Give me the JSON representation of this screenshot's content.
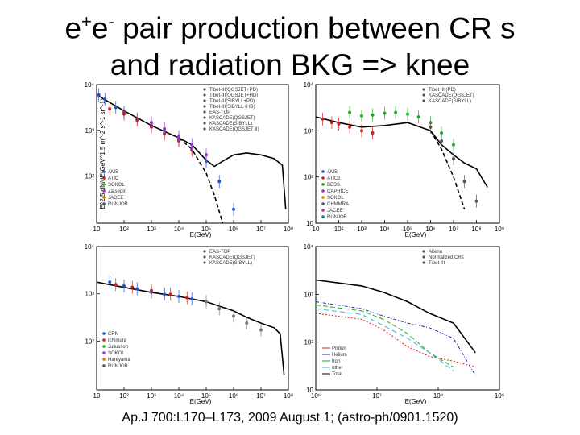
{
  "slide": {
    "title_line1_pre": "e",
    "title_sup1": "+",
    "title_mid": "e",
    "title_sup2": "-",
    "title_line1_post": " pair production between CR s",
    "title_line2": "and radiation BKG => knee",
    "citation": "Ap.J 700:L170–L173, 2009 August 1; (astro-ph/0901.1520)"
  },
  "chart_data": [
    {
      "type": "scatter",
      "xlabel": "E(GeV)",
      "ylabel": "E^2.5 dN/dE(GeV^1.5 m^-2 s^-1 sr^-1)",
      "x_ticks": [
        "10",
        "10²",
        "10³",
        "10⁴",
        "10⁵",
        "10⁶",
        "10⁷",
        "10⁸"
      ],
      "y_ticks": [
        "10⁴",
        "10³",
        "10²"
      ],
      "legend": [
        "AMS",
        "ATIC",
        "SOKOL",
        "Zatsepin",
        "JACEE",
        "RUNJOB"
      ],
      "legend_upper": [
        "Tibet-III(QGSJET+PD)",
        "Tibet-III(QGSJET+HD)",
        "Tibet-III(SIBYLL+PD)",
        "Tibet-III(SIBYLL+HD)",
        "EAS-TOP",
        "KASCADE(QGSJET)",
        "KASCADE(SIBYLL)",
        "KASCADE(QGSJET II)"
      ],
      "series": [
        {
          "values": [
            [
              12,
              6000
            ],
            [
              20,
              4800
            ],
            [
              50,
              3200
            ],
            [
              100,
              2500
            ],
            [
              300,
              1800
            ],
            [
              1000,
              1300
            ],
            [
              3000,
              900
            ],
            [
              10000,
              650
            ],
            [
              30000,
              420
            ],
            [
              100000,
              220
            ],
            [
              300000,
              80
            ],
            [
              1000000,
              20
            ]
          ],
          "color": "#2255cc"
        },
        {
          "values": [
            [
              30,
              3000
            ],
            [
              100,
              2300
            ],
            [
              300,
              1700
            ],
            [
              1000,
              1200
            ],
            [
              3000,
              850
            ],
            [
              10000,
              600
            ],
            [
              30000,
              380
            ]
          ],
          "color": "#cc2222"
        },
        {
          "values": [
            [
              1000,
              1500
            ],
            [
              3000,
              1100
            ],
            [
              10000,
              750
            ],
            [
              30000,
              500
            ],
            [
              100000,
              300
            ]
          ],
          "color": "#9933cc"
        }
      ],
      "lines": [
        {
          "name": "total",
          "values": [
            [
              10,
              6000
            ],
            [
              100,
              2700
            ],
            [
              1000,
              1300
            ],
            [
              10000,
              700
            ],
            [
              30000,
              500
            ],
            [
              100000,
              230
            ],
            [
              200000,
              170
            ],
            [
              400000,
              220
            ],
            [
              1000000,
              300
            ],
            [
              3000000,
              330
            ],
            [
              10000000,
              300
            ],
            [
              30000000,
              250
            ],
            [
              60000000,
              180
            ],
            [
              80000000,
              20
            ]
          ],
          "style": "solid"
        },
        {
          "name": "dashed",
          "values": [
            [
              10000,
              700
            ],
            [
              30000,
              400
            ],
            [
              100000,
              120
            ],
            [
              200000,
              40
            ],
            [
              400000,
              10
            ]
          ],
          "style": "dashed"
        }
      ],
      "xlim": [
        10,
        100000000
      ],
      "ylim": [
        10,
        10000
      ]
    },
    {
      "type": "scatter",
      "xlabel": "E(GeV)",
      "x_ticks": [
        "10",
        "10²",
        "10³",
        "10⁴",
        "10⁵",
        "10⁶",
        "10⁷",
        "10⁸",
        "10⁹"
      ],
      "y_ticks": [
        "10⁴",
        "10³",
        "10²",
        "10"
      ],
      "legend_upper": [
        "Tibet_III(PD)",
        "KASCADE(QGSJET)",
        "KASCADE(SIBYLL)"
      ],
      "legend": [
        "AMS",
        "ATIC2",
        "BESS",
        "CAPRICE",
        "SOKOL",
        "CHMMRA",
        "JACEE",
        "RUNJOB"
      ],
      "series": [
        {
          "values": [
            [
              300,
              2500
            ],
            [
              1000,
              2100
            ],
            [
              3000,
              2200
            ],
            [
              10000,
              2400
            ],
            [
              30000,
              2500
            ],
            [
              100000,
              2300
            ],
            [
              300000,
              2000
            ],
            [
              1000000,
              1500
            ],
            [
              3000000,
              900
            ],
            [
              10000000,
              500
            ]
          ],
          "color": "#22aa22"
        },
        {
          "values": [
            [
              20,
              1800
            ],
            [
              50,
              1500
            ],
            [
              100,
              1400
            ],
            [
              300,
              1200
            ],
            [
              1000,
              1000
            ],
            [
              3000,
              900
            ]
          ],
          "color": "#cc2222"
        },
        {
          "values": [
            [
              1000000,
              1200
            ],
            [
              3000000,
              600
            ],
            [
              10000000,
              250
            ],
            [
              30000000,
              80
            ],
            [
              100000000,
              30
            ]
          ],
          "color": "#555555"
        }
      ],
      "lines": [
        {
          "name": "total",
          "values": [
            [
              10,
              2000
            ],
            [
              100,
              1500
            ],
            [
              1000,
              1200
            ],
            [
              10000,
              1300
            ],
            [
              100000,
              1500
            ],
            [
              1000000,
              1000
            ],
            [
              3000000,
              500
            ],
            [
              10000000,
              300
            ],
            [
              30000000,
              200
            ],
            [
              100000000,
              150
            ],
            [
              300000000,
              60
            ]
          ],
          "style": "solid"
        },
        {
          "name": "dashed",
          "values": [
            [
              1000000,
              1000
            ],
            [
              3000000,
              400
            ],
            [
              10000000,
              100
            ],
            [
              30000000,
              20
            ]
          ],
          "style": "dashed"
        }
      ],
      "xlim": [
        10,
        1000000000
      ],
      "ylim": [
        10,
        10000
      ]
    },
    {
      "type": "scatter",
      "xlabel": "E(GeV)",
      "x_ticks": [
        "10",
        "10²",
        "10³",
        "10⁴",
        "10⁵",
        "10⁶",
        "10⁷",
        "10⁸"
      ],
      "y_ticks": [
        "10⁴",
        "10³",
        "10²"
      ],
      "legend_upper": [
        "EAS-TOP",
        "KASCADE(QGSJET)",
        "KASCADE(SIBYLL)"
      ],
      "legend": [
        "CRN",
        "Ichimura",
        "Juliusson",
        "SOKOL",
        "Hareyama",
        "RUNJOB"
      ],
      "series": [
        {
          "values": [
            [
              30,
              1800
            ],
            [
              100,
              1500
            ],
            [
              300,
              1300
            ],
            [
              1000,
              1100
            ],
            [
              3000,
              1000
            ],
            [
              10000,
              900
            ],
            [
              30000,
              800
            ]
          ],
          "color": "#2255cc"
        },
        {
          "values": [
            [
              50,
              1600
            ],
            [
              200,
              1400
            ],
            [
              1000,
              1200
            ],
            [
              5000,
              1000
            ],
            [
              20000,
              850
            ]
          ],
          "color": "#cc2222"
        },
        {
          "values": [
            [
              100000,
              700
            ],
            [
              300000,
              500
            ],
            [
              1000000,
              350
            ],
            [
              3000000,
              250
            ],
            [
              10000000,
              180
            ]
          ],
          "color": "#777777"
        }
      ],
      "lines": [
        {
          "name": "total",
          "values": [
            [
              10,
              1800
            ],
            [
              100,
              1400
            ],
            [
              1000,
              1100
            ],
            [
              10000,
              900
            ],
            [
              100000,
              700
            ],
            [
              1000000,
              450
            ],
            [
              3000000,
              330
            ],
            [
              10000000,
              250
            ],
            [
              30000000,
              200
            ],
            [
              50000000,
              150
            ],
            [
              70000000,
              20
            ]
          ],
          "style": "solid"
        }
      ],
      "xlim": [
        10,
        100000000
      ],
      "ylim": [
        10,
        10000
      ]
    },
    {
      "type": "line",
      "xlabel": "E(GeV)",
      "x_ticks": [
        "10⁶",
        "10⁷",
        "10⁸",
        "10⁹"
      ],
      "y_ticks": [
        "10⁴",
        "10³",
        "10²",
        "10"
      ],
      "legend_upper": [
        "Akeno",
        "Normalized CRs",
        "Tibet-III"
      ],
      "legend": [
        "Proton",
        "Helium",
        "Iron",
        "other",
        "Total"
      ],
      "series": [
        {
          "name": "Proton",
          "values": [
            [
              100000,
              400
            ],
            [
              1000000,
              300
            ],
            [
              3000000,
              180
            ],
            [
              10000000,
              80
            ],
            [
              30000000,
              50
            ],
            [
              100000000,
              40
            ],
            [
              300000000,
              30
            ]
          ],
          "color": "#cc2222"
        },
        {
          "name": "Helium",
          "values": [
            [
              100000,
              700
            ],
            [
              1000000,
              500
            ],
            [
              3000000,
              350
            ],
            [
              10000000,
              250
            ],
            [
              30000000,
              200
            ],
            [
              100000000,
              120
            ],
            [
              300000000,
              20
            ]
          ],
          "color": "#2222aa"
        },
        {
          "name": "Iron",
          "values": [
            [
              100000,
              600
            ],
            [
              1000000,
              450
            ],
            [
              3000000,
              300
            ],
            [
              10000000,
              150
            ],
            [
              30000000,
              60
            ],
            [
              100000000,
              30
            ]
          ],
          "color": "#22aa22"
        },
        {
          "name": "other",
          "values": [
            [
              100000,
              500
            ],
            [
              1000000,
              380
            ],
            [
              3000000,
              220
            ],
            [
              10000000,
              120
            ],
            [
              30000000,
              60
            ],
            [
              100000000,
              25
            ]
          ],
          "color": "#22bbdd"
        },
        {
          "name": "Total",
          "values": [
            [
              100000,
              2000
            ],
            [
              1000000,
              1500
            ],
            [
              3000000,
              1100
            ],
            [
              10000000,
              700
            ],
            [
              30000000,
              400
            ],
            [
              100000000,
              250
            ],
            [
              300000000,
              60
            ]
          ],
          "color": "#000000"
        }
      ],
      "xlim": [
        100000,
        1000000000
      ],
      "ylim": [
        10,
        10000
      ]
    }
  ]
}
